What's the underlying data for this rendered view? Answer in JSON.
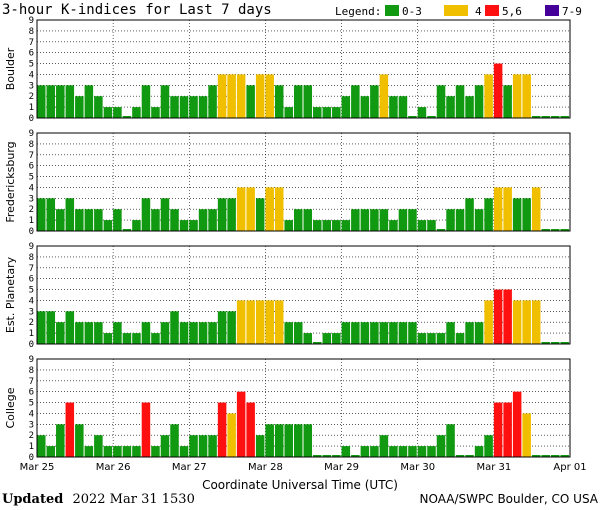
{
  "title": "3-hour K-indices for Last 7 days",
  "legend": {
    "label": "Legend:",
    "items": [
      {
        "label": "0-3",
        "color": "#119911"
      },
      {
        "label": "4",
        "color": "#f0c000"
      },
      {
        "label": "5,6",
        "color": "#ff1010"
      },
      {
        "label": "7-9",
        "color": "#440099"
      }
    ]
  },
  "footer": {
    "updated_label": "Updated",
    "updated_value": "2022 Mar 31 1530",
    "credit": "NOAA/SWPC Boulder, CO USA"
  },
  "chart_data": {
    "type": "bar",
    "xlabel": "Coordinate Universal Time (UTC)",
    "ylim": [
      0,
      9
    ],
    "y_ticks": [
      "0",
      "1",
      "2",
      "3",
      "4",
      "5",
      "6",
      "7",
      "8",
      "9"
    ],
    "x_ticks": [
      "Mar 25",
      "Mar 26",
      "Mar 27",
      "Mar 28",
      "Mar 29",
      "Mar 30",
      "Mar 31",
      "Apr 01"
    ],
    "interval_hours": 3,
    "slots": 56,
    "color_scale": [
      {
        "range": "0-3",
        "color": "#119911"
      },
      {
        "range": "4",
        "color": "#f0c000"
      },
      {
        "range": "5,6",
        "color": "#ff1010"
      },
      {
        "range": "7-9",
        "color": "#440099"
      }
    ],
    "series": [
      {
        "name": "Boulder",
        "values": [
          3,
          3,
          3,
          3,
          2,
          3,
          2,
          1,
          1,
          0,
          1,
          3,
          1,
          3,
          2,
          2,
          2,
          2,
          3,
          4,
          4,
          4,
          3,
          4,
          4,
          3,
          1,
          3,
          3,
          1,
          1,
          1,
          2,
          3,
          2,
          3,
          4,
          2,
          2,
          0,
          1,
          0,
          3,
          2,
          3,
          2,
          3,
          4,
          5,
          3,
          4,
          4,
          0,
          0,
          0,
          0
        ]
      },
      {
        "name": "Fredericksburg",
        "values": [
          3,
          3,
          2,
          3,
          2,
          2,
          2,
          1,
          2,
          0,
          1,
          3,
          2,
          3,
          2,
          1,
          1,
          2,
          2,
          3,
          3,
          4,
          4,
          3,
          4,
          4,
          1,
          2,
          2,
          1,
          1,
          1,
          1,
          2,
          2,
          2,
          2,
          1,
          2,
          2,
          1,
          1,
          0,
          2,
          2,
          3,
          2,
          3,
          4,
          4,
          3,
          3,
          4,
          0,
          0,
          0
        ]
      },
      {
        "name": "Est. Planetary",
        "values": [
          3,
          3,
          2,
          3,
          2,
          2,
          2,
          1,
          2,
          1,
          1,
          2,
          1,
          2,
          3,
          2,
          2,
          2,
          2,
          3,
          3,
          4,
          4,
          4,
          4,
          4,
          2,
          2,
          1,
          0,
          1,
          1,
          2,
          2,
          2,
          2,
          2,
          2,
          2,
          2,
          1,
          1,
          1,
          2,
          1,
          2,
          2,
          4,
          5,
          5,
          4,
          4,
          4,
          0,
          0,
          0
        ]
      },
      {
        "name": "College",
        "values": [
          2,
          1,
          3,
          5,
          3,
          1,
          2,
          1,
          1,
          1,
          1,
          5,
          1,
          2,
          3,
          1,
          2,
          2,
          2,
          5,
          4,
          6,
          5,
          2,
          3,
          3,
          3,
          3,
          3,
          0,
          0,
          0,
          1,
          0,
          1,
          1,
          2,
          1,
          1,
          1,
          1,
          1,
          2,
          3,
          0,
          0,
          1,
          2,
          5,
          5,
          6,
          4,
          0,
          0,
          0,
          0
        ]
      }
    ]
  }
}
